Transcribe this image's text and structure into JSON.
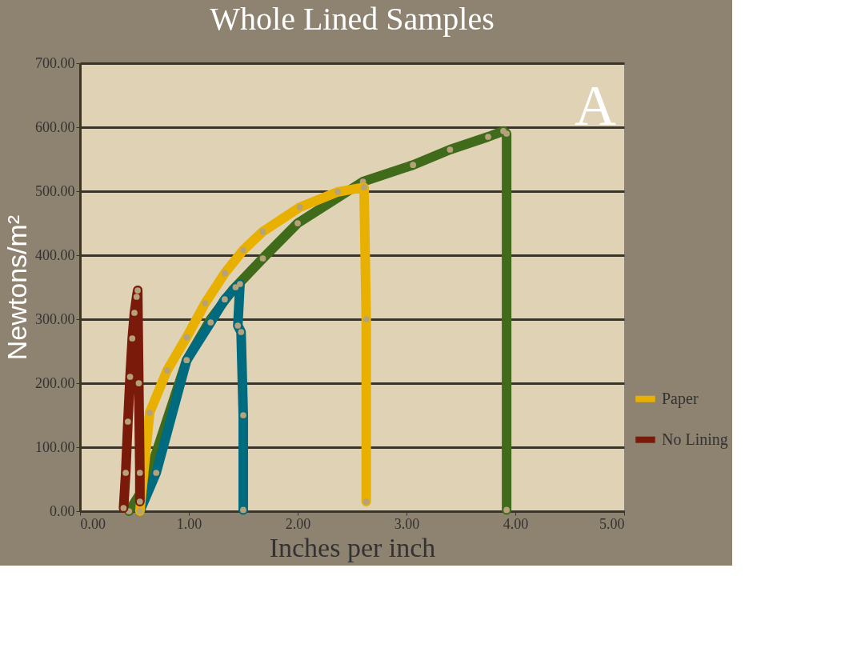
{
  "chart_data": {
    "type": "line",
    "title": "Whole Lined Samples",
    "xlabel": "Inches per inch",
    "ylabel": "Newtons/m²",
    "xlim": [
      0,
      5
    ],
    "ylim": [
      0,
      700
    ],
    "xticks": [
      {
        "value": 0,
        "label": "0.00"
      },
      {
        "value": 1,
        "label": "1.00"
      },
      {
        "value": 2,
        "label": "2.00"
      },
      {
        "value": 3,
        "label": "3.00"
      },
      {
        "value": 4,
        "label": "4.00"
      },
      {
        "value": 5,
        "label": "5.00"
      }
    ],
    "yticks": [
      {
        "value": 0,
        "label": "0.00"
      },
      {
        "value": 100,
        "label": "100.00"
      },
      {
        "value": 200,
        "label": "200.00"
      },
      {
        "value": 300,
        "label": "300.00"
      },
      {
        "value": 400,
        "label": "400.00"
      },
      {
        "value": 500,
        "label": "500.00"
      },
      {
        "value": 600,
        "label": "600.00"
      },
      {
        "value": 700,
        "label": "700.00"
      }
    ],
    "grid": "y",
    "legend": "right",
    "marker": "circle",
    "line_style": "solid",
    "annotations": [
      "A"
    ],
    "series": [
      {
        "color": "#3f6b1a",
        "x": [
          0.45,
          0.6,
          0.98,
          1.2,
          1.4,
          1.68,
          2.0,
          2.6,
          3.06,
          3.4,
          3.75,
          3.89,
          3.92,
          3.92
        ],
        "values": [
          0,
          40,
          236,
          300,
          345,
          395,
          450,
          515,
          541,
          565,
          585,
          594,
          590,
          2
        ]
      },
      {
        "color": "#006a7f",
        "x": [
          0.55,
          0.7,
          0.98,
          1.2,
          1.33,
          1.43,
          1.47,
          1.45,
          1.48,
          1.5,
          1.5
        ],
        "values": [
          0,
          60,
          236,
          295,
          331,
          350,
          355,
          290,
          280,
          150,
          2
        ]
      },
      {
        "name": "Paper",
        "color": "#e8b000",
        "x": [
          0.55,
          0.64,
          0.8,
          0.98,
          1.15,
          1.33,
          1.5,
          1.68,
          2.02,
          2.37,
          2.61,
          2.63,
          2.63
        ],
        "values": [
          0,
          154,
          220,
          272,
          325,
          372,
          408,
          437,
          475,
          499,
          506,
          300,
          15
        ]
      },
      {
        "name": "No Lining",
        "color": "#7a1a0a",
        "x": [
          0.4,
          0.42,
          0.44,
          0.46,
          0.48,
          0.5,
          0.52,
          0.53,
          0.54,
          0.55,
          0.55
        ],
        "values": [
          5,
          60,
          140,
          210,
          270,
          310,
          335,
          345,
          200,
          60,
          15
        ]
      }
    ]
  }
}
